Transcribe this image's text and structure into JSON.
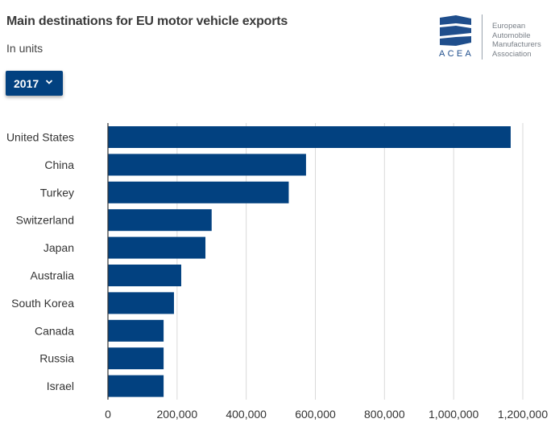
{
  "header": {
    "title": "Main destinations for EU motor vehicle exports",
    "subtitle": "In units"
  },
  "year_select": {
    "value": "2017"
  },
  "logo": {
    "acronym": "ACEA",
    "name_lines": [
      "European",
      "Automobile",
      "Manufacturers",
      "Association"
    ],
    "color": "#1f4e8c"
  },
  "colors": {
    "bar": "#024180",
    "grid": "#d9d9d9",
    "axis": "#333333"
  },
  "chart_data": {
    "type": "bar",
    "orientation": "horizontal",
    "title": "Main destinations for EU motor vehicle exports",
    "subtitle": "In units",
    "categories": [
      "United States",
      "China",
      "Turkey",
      "Switzerland",
      "Japan",
      "Australia",
      "South Korea",
      "Canada",
      "Russia",
      "Israel"
    ],
    "values": [
      1165000,
      573000,
      523000,
      300000,
      282000,
      212000,
      191000,
      161000,
      161000,
      161000
    ],
    "xlim": [
      0,
      1200000
    ],
    "xticks": [
      0,
      200000,
      400000,
      600000,
      800000,
      1000000,
      1200000
    ],
    "xtick_labels": [
      "0",
      "200,000",
      "400,000",
      "600,000",
      "800,000",
      "1,000,000",
      "1,200,000"
    ],
    "xlabel": "",
    "ylabel": "",
    "grid": true,
    "legend": "none"
  }
}
